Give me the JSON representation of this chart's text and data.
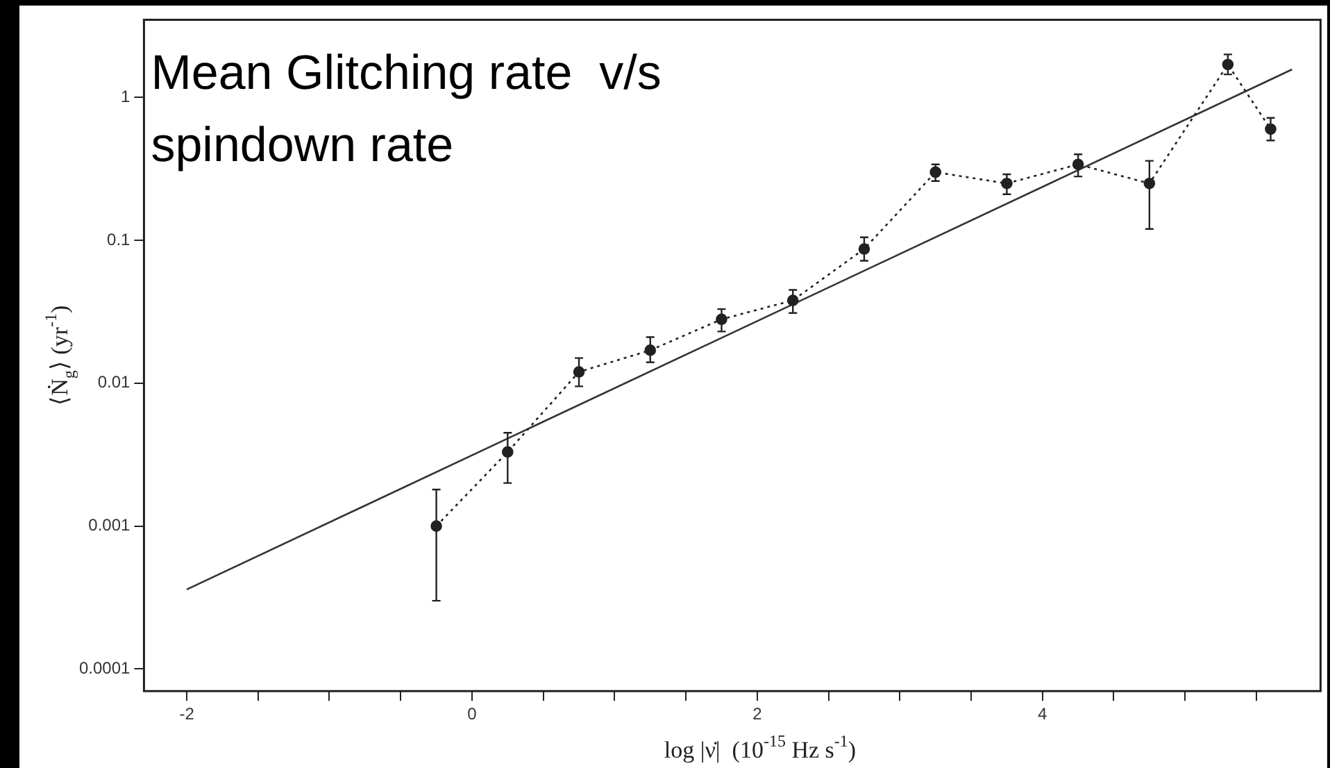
{
  "chart_data": {
    "type": "line",
    "title": "Mean Glitching rate  v/s spindown rate",
    "xlabel": "log |ν̇|  (10$^{-15}$ Hz s$^{-1}$)",
    "ylabel": "⟨Ṅ$_{g}$⟩ (yr$^{-1}$)",
    "log": "y",
    "xlim": [
      -2.3,
      5.95
    ],
    "ylim": [
      7e-05,
      3.5
    ],
    "xticks": [
      -2,
      {
        "value": -1.5,
        "label": null
      },
      {
        "value": -1,
        "label": null
      },
      {
        "value": -0.5,
        "label": null
      },
      0,
      {
        "value": 0.5,
        "label": null
      },
      {
        "value": 1,
        "label": null
      },
      {
        "value": 1.5,
        "label": null
      },
      2,
      {
        "value": 2.5,
        "label": null
      },
      {
        "value": 3,
        "label": null
      },
      {
        "value": 3.5,
        "label": null
      },
      4,
      {
        "value": 4.5,
        "label": null
      },
      {
        "value": 5,
        "label": null
      },
      {
        "value": 5.5,
        "label": null
      }
    ],
    "yticks": [
      0.0001,
      0.001,
      0.01,
      0.1,
      1
    ],
    "series": [
      {
        "color": "#222222",
        "marker": "circle",
        "line_style": "dotted",
        "x": [
          -0.25,
          0.25,
          0.75,
          1.25,
          1.75,
          2.25,
          2.75,
          3.25,
          3.75,
          4.25,
          4.75,
          5.3,
          5.6
        ],
        "values": [
          0.001,
          0.0033,
          0.012,
          0.017,
          0.028,
          0.038,
          0.087,
          0.3,
          0.25,
          0.34,
          0.25,
          1.7,
          0.6
        ],
        "errors": [
          [
            0.0003,
            0.0018
          ],
          [
            0.002,
            0.0045
          ],
          [
            0.0095,
            0.015
          ],
          [
            0.014,
            0.021
          ],
          [
            0.023,
            0.033
          ],
          [
            0.031,
            0.045
          ],
          [
            0.072,
            0.105
          ],
          [
            0.26,
            0.34
          ],
          [
            0.21,
            0.29
          ],
          [
            0.28,
            0.4
          ],
          [
            0.12,
            0.36
          ],
          [
            1.45,
            2.0
          ],
          [
            0.5,
            0.72
          ]
        ]
      },
      {
        "color": "#333333",
        "marker": "none",
        "line_style": "solid",
        "x": [
          -2,
          5.75
        ],
        "values": [
          0.00036,
          1.57
        ]
      }
    ]
  }
}
